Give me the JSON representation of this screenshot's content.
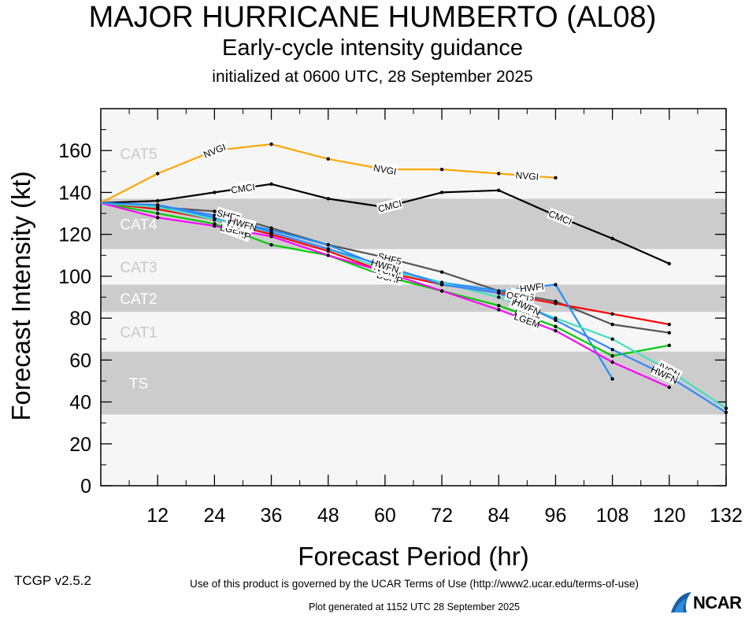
{
  "titles": {
    "main": "MAJOR HURRICANE HUMBERTO (AL08)",
    "sub": "Early-cycle intensity guidance",
    "init": "initialized at 0600 UTC, 28 September 2025"
  },
  "footer": {
    "version": "TCGP v2.5.2",
    "terms": "Use of this product is governed by the UCAR Terms of Use (http://www2.ucar.edu/terms-of-use)",
    "generated": "Plot generated at 1152 UTC   28 September 2025",
    "logo": "NCAR"
  },
  "chart_data": {
    "type": "line",
    "xlabel": "Forecast Period (hr)",
    "ylabel": "Forecast Intensity (kt)",
    "xlim": [
      0,
      132
    ],
    "ylim": [
      0,
      180
    ],
    "xticks": [
      12,
      24,
      36,
      48,
      60,
      72,
      84,
      96,
      108,
      120,
      132
    ],
    "yticks": [
      0,
      20,
      40,
      60,
      80,
      100,
      120,
      140,
      160
    ],
    "bands": [
      {
        "label": "TS",
        "from": 34,
        "to": 64,
        "shaded": true
      },
      {
        "label": "CAT1",
        "from": 64,
        "to": 83,
        "shaded": false
      },
      {
        "label": "CAT2",
        "from": 83,
        "to": 96,
        "shaded": true
      },
      {
        "label": "CAT3",
        "from": 96,
        "to": 113,
        "shaded": false
      },
      {
        "label": "CAT4",
        "from": 113,
        "to": 137,
        "shaded": true
      },
      {
        "label": "CAT5",
        "from": 137,
        "to": 180,
        "shaded": false
      }
    ],
    "colors": {
      "band_shaded": "#cccccc",
      "band_light": "#f6f6f6"
    },
    "series": [
      {
        "name": "NVGI",
        "color": "#ffa500",
        "x": [
          0,
          12,
          24,
          36,
          48,
          60,
          72,
          84,
          96
        ],
        "y": [
          135,
          149,
          160,
          163,
          156,
          151,
          151,
          149,
          147
        ],
        "label_at": [
          24,
          60,
          90
        ]
      },
      {
        "name": "CMCI",
        "color": "#000000",
        "x": [
          0,
          12,
          24,
          36,
          48,
          60,
          72,
          84,
          96,
          108,
          120
        ],
        "y": [
          135,
          136,
          140,
          144,
          137,
          133,
          140,
          141,
          129,
          118,
          106
        ],
        "label_at": [
          30,
          61,
          97
        ]
      },
      {
        "name": "SHF5",
        "color": "#555555",
        "x": [
          0,
          12,
          24,
          36,
          48,
          60,
          72,
          84,
          96,
          108,
          120
        ],
        "y": [
          135,
          133,
          131,
          123,
          115,
          109,
          102,
          93,
          88,
          77,
          73
        ],
        "label_at": [
          27,
          61,
          89
        ]
      },
      {
        "name": "OFCI",
        "color": "#ff0000",
        "x": [
          0,
          12,
          24,
          36,
          48,
          60,
          72,
          84,
          96,
          108,
          120
        ],
        "y": [
          135,
          132,
          127,
          120,
          112,
          102,
          96,
          92,
          87,
          82,
          77
        ],
        "label_at": [
          29,
          61,
          88
        ]
      },
      {
        "name": "HWFI",
        "color": "#1e90ff",
        "x": [
          0,
          12,
          24,
          36,
          48,
          60,
          72,
          84,
          96,
          108
        ],
        "y": [
          135,
          134,
          128,
          122,
          115,
          104,
          97,
          93,
          96,
          51
        ],
        "label_at": [
          30,
          60,
          91
        ]
      },
      {
        "name": "DSHP",
        "color": "#00cc00",
        "x": [
          0,
          12,
          24,
          36,
          48,
          60,
          72,
          84,
          96,
          108,
          120
        ],
        "y": [
          135,
          130,
          125,
          115,
          110,
          100,
          93,
          86,
          76,
          62,
          67
        ],
        "label_at": [
          29,
          61,
          90
        ]
      },
      {
        "name": "LGEM",
        "color": "#ff00ff",
        "x": [
          0,
          12,
          24,
          36,
          48,
          60,
          72,
          84,
          96,
          108,
          120
        ],
        "y": [
          135,
          128,
          124,
          119,
          110,
          102,
          93,
          84,
          74,
          59,
          47
        ],
        "label_at": [
          28,
          60,
          90
        ]
      },
      {
        "name": "IVCN",
        "color": "#40e0c0",
        "x": [
          0,
          12,
          24,
          36,
          48,
          60,
          72,
          84,
          96,
          108,
          120,
          132
        ],
        "y": [
          135,
          133,
          127,
          121,
          113,
          103,
          97,
          90,
          80,
          70,
          55,
          37
        ],
        "label_at": [
          29,
          60,
          89,
          120
        ]
      },
      {
        "name": "HWFN",
        "color": "#3388ff",
        "x": [
          0,
          12,
          24,
          36,
          48,
          60,
          72,
          84,
          96,
          108,
          120,
          132
        ],
        "y": [
          135,
          134,
          129,
          121,
          113,
          105,
          96,
          92,
          79,
          65,
          52,
          35
        ],
        "label_at": [
          30,
          60,
          90,
          119
        ]
      }
    ]
  }
}
